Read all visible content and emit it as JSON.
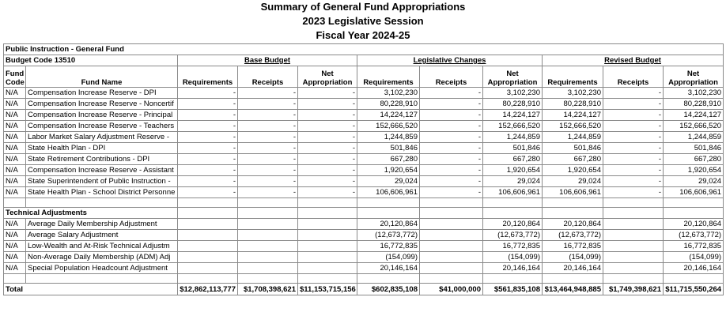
{
  "header": {
    "title": [
      "Summary of General Fund Appropriations",
      "2023 Legislative Session",
      "Fiscal Year 2024-25"
    ]
  },
  "table": {
    "fund": "Public Instruction - General Fund",
    "budget_code": "Budget Code 13510",
    "groups": [
      "Base Budget",
      "Legislative Changes",
      "Revised Budget"
    ],
    "columns": [
      "Fund Code",
      "Fund Name",
      "Requirements",
      "Receipts",
      "Net Appropriation",
      "Requirements",
      "Receipts",
      "Net Appropriation",
      "Requirements",
      "Receipts",
      "Net Appropriation"
    ],
    "rows": [
      [
        "N/A",
        "Compensation Increase Reserve - DPI",
        "-",
        "-",
        "-",
        "3,102,230",
        "-",
        "3,102,230",
        "3,102,230",
        "-",
        "3,102,230"
      ],
      [
        "N/A",
        "Compensation Increase Reserve - Noncertif",
        "-",
        "-",
        "-",
        "80,228,910",
        "-",
        "80,228,910",
        "80,228,910",
        "-",
        "80,228,910"
      ],
      [
        "N/A",
        "Compensation Increase Reserve - Principal",
        "-",
        "-",
        "-",
        "14,224,127",
        "-",
        "14,224,127",
        "14,224,127",
        "-",
        "14,224,127"
      ],
      [
        "N/A",
        "Compensation Increase Reserve - Teachers",
        "-",
        "-",
        "-",
        "152,666,520",
        "-",
        "152,666,520",
        "152,666,520",
        "-",
        "152,666,520"
      ],
      [
        "N/A",
        "Labor Market Salary Adjustment Reserve -",
        "-",
        "-",
        "-",
        "1,244,859",
        "-",
        "1,244,859",
        "1,244,859",
        "-",
        "1,244,859"
      ],
      [
        "N/A",
        "State Health Plan - DPI",
        "-",
        "-",
        "-",
        "501,846",
        "-",
        "501,846",
        "501,846",
        "-",
        "501,846"
      ],
      [
        "N/A",
        "State Retirement Contributions - DPI",
        "-",
        "-",
        "-",
        "667,280",
        "-",
        "667,280",
        "667,280",
        "-",
        "667,280"
      ],
      [
        "N/A",
        "Compensation Increase Reserve - Assistant",
        "-",
        "-",
        "-",
        "1,920,654",
        "-",
        "1,920,654",
        "1,920,654",
        "-",
        "1,920,654"
      ],
      [
        "N/A",
        "State Superintendent of Public Instruction -",
        "-",
        "-",
        "-",
        "29,024",
        "-",
        "29,024",
        "29,024",
        "-",
        "29,024"
      ],
      [
        "N/A",
        "State Health Plan - School District Personne",
        "-",
        "-",
        "-",
        "106,606,961",
        "-",
        "106,606,961",
        "106,606,961",
        "-",
        "106,606,961"
      ]
    ],
    "section": "Technical Adjustments",
    "adjustments": [
      [
        "N/A",
        "Average Daily Membership Adjustment",
        null,
        null,
        null,
        "20,120,864",
        null,
        "20,120,864",
        "20,120,864",
        null,
        "20,120,864"
      ],
      [
        "N/A",
        "Average Salary Adjustment",
        null,
        null,
        null,
        "(12,673,772)",
        null,
        "(12,673,772)",
        "(12,673,772)",
        null,
        "(12,673,772)"
      ],
      [
        "N/A",
        "Low-Wealth and At-Risk Technical Adjustm",
        null,
        null,
        null,
        "16,772,835",
        null,
        "16,772,835",
        "16,772,835",
        null,
        "16,772,835"
      ],
      [
        "N/A",
        "Non-Average Daily Membership (ADM) Adj",
        null,
        null,
        null,
        "(154,099)",
        null,
        "(154,099)",
        "(154,099)",
        null,
        "(154,099)"
      ],
      [
        "N/A",
        "Special Population Headcount Adjustment",
        null,
        null,
        null,
        "20,146,164",
        null,
        "20,146,164",
        "20,146,164",
        null,
        "20,146,164"
      ]
    ],
    "total": [
      "Total",
      "$12,862,113,777",
      "$1,708,398,621",
      "$11,153,715,156",
      "$602,835,108",
      "$41,000,000",
      "$561,835,108",
      "$13,464,948,885",
      "$1,749,398,621",
      "$11,715,550,264"
    ]
  }
}
